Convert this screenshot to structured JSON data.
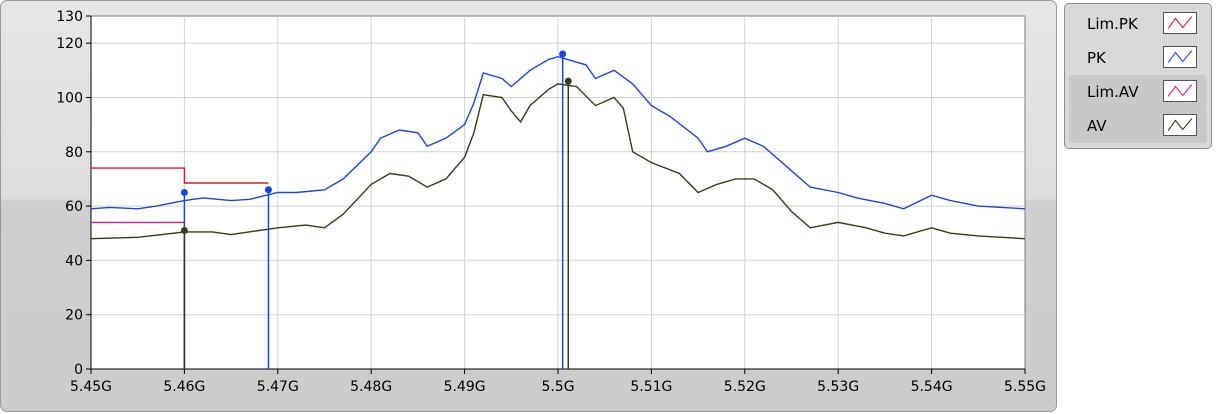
{
  "chart_data": {
    "type": "line",
    "xlim": [
      5.45,
      5.55
    ],
    "ylim": [
      0,
      130
    ],
    "x_ticks": [
      {
        "value": 5.45,
        "label": "5.45G"
      },
      {
        "value": 5.46,
        "label": "5.46G"
      },
      {
        "value": 5.47,
        "label": "5.47G"
      },
      {
        "value": 5.48,
        "label": "5.48G"
      },
      {
        "value": 5.49,
        "label": "5.49G"
      },
      {
        "value": 5.5,
        "label": "5.5G"
      },
      {
        "value": 5.51,
        "label": "5.51G"
      },
      {
        "value": 5.52,
        "label": "5.52G"
      },
      {
        "value": 5.53,
        "label": "5.53G"
      },
      {
        "value": 5.54,
        "label": "5.54G"
      },
      {
        "value": 5.55,
        "label": "5.55G"
      }
    ],
    "y_ticks": [
      {
        "value": 0,
        "label": "0"
      },
      {
        "value": 20,
        "label": "20"
      },
      {
        "value": 40,
        "label": "40"
      },
      {
        "value": 60,
        "label": "60"
      },
      {
        "value": 80,
        "label": "80"
      },
      {
        "value": 100,
        "label": "100"
      },
      {
        "value": 120,
        "label": "120"
      },
      {
        "value": 130,
        "label": "130"
      }
    ],
    "grid": true,
    "legend_position": "right",
    "series": [
      {
        "name": "Lim.PK",
        "color": "#e8102a",
        "step": true,
        "points": [
          [
            5.45,
            74
          ],
          [
            5.46,
            74
          ],
          [
            5.46,
            68.5
          ],
          [
            5.469,
            68.5
          ]
        ]
      },
      {
        "name": "PK",
        "color": "#1a47d6",
        "step": false,
        "points": [
          [
            5.45,
            59
          ],
          [
            5.452,
            59.5
          ],
          [
            5.455,
            59
          ],
          [
            5.457,
            60
          ],
          [
            5.46,
            62
          ],
          [
            5.462,
            63
          ],
          [
            5.465,
            62
          ],
          [
            5.467,
            62.5
          ],
          [
            5.47,
            65
          ],
          [
            5.472,
            65
          ],
          [
            5.475,
            66
          ],
          [
            5.477,
            70
          ],
          [
            5.48,
            80
          ],
          [
            5.481,
            85
          ],
          [
            5.483,
            88
          ],
          [
            5.485,
            87
          ],
          [
            5.486,
            82
          ],
          [
            5.488,
            85
          ],
          [
            5.49,
            90
          ],
          [
            5.491,
            98
          ],
          [
            5.492,
            109
          ],
          [
            5.494,
            107
          ],
          [
            5.495,
            104
          ],
          [
            5.497,
            110
          ],
          [
            5.499,
            114
          ],
          [
            5.5,
            115
          ],
          [
            5.501,
            114
          ],
          [
            5.503,
            112
          ],
          [
            5.504,
            107
          ],
          [
            5.506,
            110
          ],
          [
            5.508,
            105
          ],
          [
            5.51,
            97
          ],
          [
            5.512,
            93
          ],
          [
            5.515,
            85
          ],
          [
            5.516,
            80
          ],
          [
            5.518,
            82
          ],
          [
            5.52,
            85
          ],
          [
            5.522,
            82
          ],
          [
            5.525,
            73
          ],
          [
            5.527,
            67
          ],
          [
            5.53,
            65
          ],
          [
            5.532,
            63
          ],
          [
            5.535,
            61
          ],
          [
            5.537,
            59
          ],
          [
            5.54,
            64
          ],
          [
            5.542,
            62
          ],
          [
            5.545,
            60
          ],
          [
            5.55,
            59
          ]
        ]
      },
      {
        "name": "Lim.AV",
        "color": "#e8109a",
        "step": true,
        "points": [
          [
            5.45,
            54
          ],
          [
            5.46,
            54
          ]
        ]
      },
      {
        "name": "AV",
        "color": "#3a3a18",
        "step": false,
        "points": [
          [
            5.45,
            48
          ],
          [
            5.455,
            48.5
          ],
          [
            5.46,
            50.5
          ],
          [
            5.463,
            50.5
          ],
          [
            5.465,
            49.5
          ],
          [
            5.468,
            51
          ],
          [
            5.47,
            52
          ],
          [
            5.473,
            53
          ],
          [
            5.475,
            52
          ],
          [
            5.477,
            57
          ],
          [
            5.48,
            68
          ],
          [
            5.482,
            72
          ],
          [
            5.484,
            71
          ],
          [
            5.486,
            67
          ],
          [
            5.488,
            70
          ],
          [
            5.49,
            78
          ],
          [
            5.491,
            87
          ],
          [
            5.492,
            101
          ],
          [
            5.494,
            100
          ],
          [
            5.495,
            95
          ],
          [
            5.496,
            91
          ],
          [
            5.497,
            97
          ],
          [
            5.499,
            103
          ],
          [
            5.5,
            105
          ],
          [
            5.502,
            104
          ],
          [
            5.504,
            97
          ],
          [
            5.506,
            100
          ],
          [
            5.507,
            96
          ],
          [
            5.508,
            80
          ],
          [
            5.51,
            76
          ],
          [
            5.513,
            72
          ],
          [
            5.515,
            65
          ],
          [
            5.517,
            68
          ],
          [
            5.519,
            70
          ],
          [
            5.521,
            70
          ],
          [
            5.523,
            66
          ],
          [
            5.525,
            58
          ],
          [
            5.527,
            52
          ],
          [
            5.53,
            54
          ],
          [
            5.533,
            52
          ],
          [
            5.535,
            50
          ],
          [
            5.537,
            49
          ],
          [
            5.54,
            52
          ],
          [
            5.542,
            50
          ],
          [
            5.545,
            49
          ],
          [
            5.55,
            48
          ]
        ]
      }
    ],
    "markers": [
      {
        "series": "PK",
        "x": 5.46,
        "y": 65
      },
      {
        "series": "AV",
        "x": 5.46,
        "y": 51
      },
      {
        "series": "PK",
        "x": 5.469,
        "y": 66
      },
      {
        "series": "PK",
        "x": 5.5005,
        "y": 116
      },
      {
        "series": "AV",
        "x": 5.5011,
        "y": 106
      }
    ]
  },
  "legend": {
    "items": [
      {
        "label": "Lim.PK",
        "color": "#e8102a"
      },
      {
        "label": "PK",
        "color": "#1a47d6"
      },
      {
        "label": "Lim.AV",
        "color": "#e8109a"
      },
      {
        "label": "AV",
        "color": "#3a3a18"
      }
    ]
  }
}
